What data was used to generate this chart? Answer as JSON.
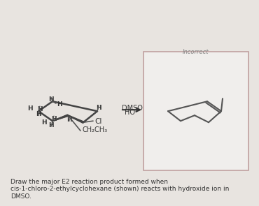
{
  "title_text": "Draw the major E2 reaction product formed when cis-1-chloro-2-ethylcyclohexane (shown) reacts with hydroxide ion in\nDMSO.",
  "title_fontsize": 6.5,
  "reagent_top": "HO⁻",
  "reagent_bottom": "DMSO",
  "incorrect_label": "Incorrect",
  "bg_color": "#e8e4e0",
  "box_bg": "#f0eeec",
  "box_border": "#c0a0a0",
  "line_color": "#555555",
  "text_color": "#333333",
  "fig_bg": "#d8d4d0"
}
